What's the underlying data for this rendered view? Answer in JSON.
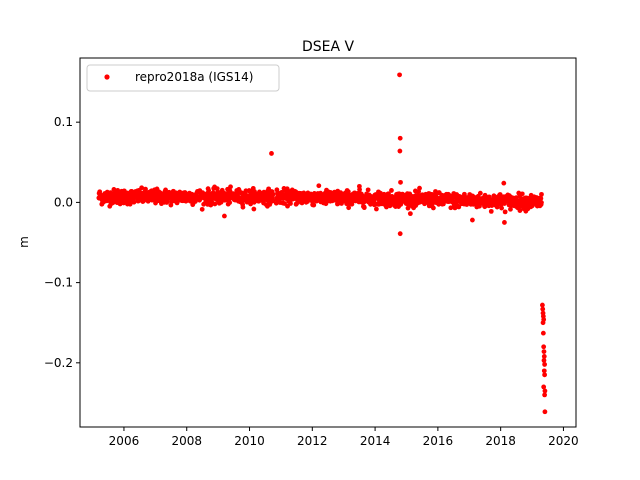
{
  "chart_data": {
    "type": "scatter",
    "title": "DSEA V",
    "xlabel": "",
    "ylabel": "m",
    "xlim": [
      2004.6,
      2020.4
    ],
    "ylim": [
      -0.28,
      0.18
    ],
    "x_ticks": [
      2006,
      2008,
      2010,
      2012,
      2014,
      2016,
      2018,
      2020
    ],
    "x_tick_labels": [
      "2006",
      "2008",
      "2010",
      "2012",
      "2014",
      "2016",
      "2018",
      "2020"
    ],
    "y_ticks": [
      0.1,
      0.0,
      -0.1,
      -0.2
    ],
    "y_tick_labels": [
      "0.1",
      "0.0",
      "−0.1",
      "−0.2"
    ],
    "grid": false,
    "legend_position": "top-left",
    "series": [
      {
        "name": "repro2018a (IGS14)",
        "color": "#ff0000",
        "marker": "dot",
        "main_band": {
          "x_start": 2005.2,
          "x_end": 2019.3,
          "gaps": [
            [
              2010.75,
              2010.85
            ]
          ]
        },
        "points": [
          [
            2005.3,
            -0.002
          ],
          [
            2005.5,
            0.008
          ],
          [
            2005.8,
            0.015
          ],
          [
            2006.0,
            0.012
          ],
          [
            2006.3,
            0.005
          ],
          [
            2006.6,
            0.01
          ],
          [
            2007.0,
            0.003
          ],
          [
            2007.4,
            0.008
          ],
          [
            2007.8,
            0.012
          ],
          [
            2008.2,
            0.006
          ],
          [
            2008.6,
            0.004
          ],
          [
            2009.0,
            0.002
          ],
          [
            2009.2,
            -0.017
          ],
          [
            2009.5,
            0.006
          ],
          [
            2009.9,
            0.004
          ],
          [
            2010.3,
            0.008
          ],
          [
            2010.6,
            0.002
          ],
          [
            2010.7,
            0.061
          ],
          [
            2011.0,
            0.005
          ],
          [
            2011.3,
            0.012
          ],
          [
            2011.7,
            0.004
          ],
          [
            2012.0,
            0.006
          ],
          [
            2012.4,
            0.002
          ],
          [
            2012.8,
            -0.002
          ],
          [
            2013.2,
            0.003
          ],
          [
            2013.5,
            0.02
          ],
          [
            2013.9,
            -0.001
          ],
          [
            2014.3,
            0.0
          ],
          [
            2014.78,
            0.159
          ],
          [
            2014.8,
            0.08
          ],
          [
            2014.79,
            0.064
          ],
          [
            2014.81,
            0.025
          ],
          [
            2014.8,
            -0.039
          ],
          [
            2015.2,
            -0.004
          ],
          [
            2015.6,
            0.0
          ],
          [
            2015.8,
            0.01
          ],
          [
            2016.2,
            0.002
          ],
          [
            2016.6,
            -0.003
          ],
          [
            2017.0,
            0.004
          ],
          [
            2017.1,
            -0.022
          ],
          [
            2017.5,
            0.002
          ],
          [
            2017.9,
            0.006
          ],
          [
            2018.1,
            0.024
          ],
          [
            2018.12,
            -0.025
          ],
          [
            2018.5,
            0.001
          ],
          [
            2018.9,
            -0.004
          ],
          [
            2019.2,
            -0.003
          ],
          [
            2019.3,
            0.01
          ],
          [
            2019.33,
            -0.128
          ],
          [
            2019.34,
            -0.133
          ],
          [
            2019.35,
            -0.138
          ],
          [
            2019.36,
            -0.142
          ],
          [
            2019.37,
            -0.146
          ],
          [
            2019.35,
            -0.15
          ],
          [
            2019.36,
            -0.163
          ],
          [
            2019.37,
            -0.18
          ],
          [
            2019.38,
            -0.186
          ],
          [
            2019.39,
            -0.192
          ],
          [
            2019.38,
            -0.197
          ],
          [
            2019.4,
            -0.202
          ],
          [
            2019.39,
            -0.21
          ],
          [
            2019.4,
            -0.215
          ],
          [
            2019.37,
            -0.23
          ],
          [
            2019.41,
            -0.235
          ],
          [
            2019.4,
            -0.24
          ],
          [
            2019.41,
            -0.261
          ]
        ]
      }
    ]
  }
}
